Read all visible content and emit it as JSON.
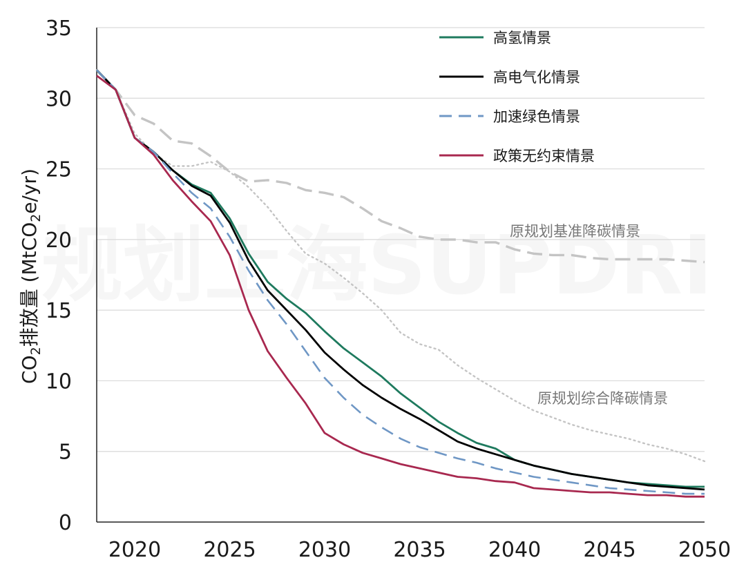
{
  "chart_data": {
    "type": "line",
    "ylabel_prefix": "CO",
    "ylabel_sub": "2",
    "ylabel_mid": "排放量 (MtCO",
    "ylabel_sub2": "2",
    "ylabel_suffix": "e/yr)",
    "xlim": [
      2018,
      2050
    ],
    "ylim": [
      0,
      35
    ],
    "x_ticks": [
      2020,
      2025,
      2030,
      2035,
      2040,
      2045,
      2050
    ],
    "y_ticks": [
      0,
      5,
      10,
      15,
      20,
      25,
      30,
      35
    ],
    "grid": "horizontal",
    "legend_position": "top-right",
    "watermark": "规划上海SUPDRI",
    "series": [
      {
        "name": "高氢情景",
        "color": "#1e7a5e",
        "dash": "solid",
        "points": [
          [
            2018,
            32.0
          ],
          [
            2019,
            30.6
          ],
          [
            2020,
            27.2
          ],
          [
            2021,
            26.2
          ],
          [
            2022,
            24.9
          ],
          [
            2023,
            23.9
          ],
          [
            2024,
            23.3
          ],
          [
            2025,
            21.5
          ],
          [
            2026,
            19.0
          ],
          [
            2027,
            17.0
          ],
          [
            2028,
            15.8
          ],
          [
            2029,
            14.8
          ],
          [
            2030,
            13.5
          ],
          [
            2031,
            12.3
          ],
          [
            2032,
            11.3
          ],
          [
            2033,
            10.3
          ],
          [
            2034,
            9.1
          ],
          [
            2035,
            8.1
          ],
          [
            2036,
            7.1
          ],
          [
            2037,
            6.3
          ],
          [
            2038,
            5.6
          ],
          [
            2039,
            5.2
          ],
          [
            2040,
            4.4
          ],
          [
            2041,
            4.0
          ],
          [
            2042,
            3.7
          ],
          [
            2043,
            3.4
          ],
          [
            2044,
            3.2
          ],
          [
            2045,
            3.0
          ],
          [
            2046,
            2.8
          ],
          [
            2047,
            2.7
          ],
          [
            2048,
            2.6
          ],
          [
            2049,
            2.5
          ],
          [
            2050,
            2.5
          ]
        ]
      },
      {
        "name": "高电气化情景",
        "color": "#000000",
        "dash": "solid",
        "points": [
          [
            2018,
            32.0
          ],
          [
            2019,
            30.6
          ],
          [
            2020,
            27.2
          ],
          [
            2021,
            26.2
          ],
          [
            2022,
            24.9
          ],
          [
            2023,
            23.8
          ],
          [
            2024,
            23.1
          ],
          [
            2025,
            21.2
          ],
          [
            2026,
            18.5
          ],
          [
            2027,
            16.4
          ],
          [
            2028,
            15.0
          ],
          [
            2029,
            13.6
          ],
          [
            2030,
            12.0
          ],
          [
            2031,
            10.8
          ],
          [
            2032,
            9.7
          ],
          [
            2033,
            8.8
          ],
          [
            2034,
            8.0
          ],
          [
            2035,
            7.3
          ],
          [
            2036,
            6.5
          ],
          [
            2037,
            5.7
          ],
          [
            2038,
            5.2
          ],
          [
            2039,
            4.8
          ],
          [
            2040,
            4.4
          ],
          [
            2041,
            4.0
          ],
          [
            2042,
            3.7
          ],
          [
            2043,
            3.4
          ],
          [
            2044,
            3.2
          ],
          [
            2045,
            3.0
          ],
          [
            2046,
            2.8
          ],
          [
            2047,
            2.6
          ],
          [
            2048,
            2.5
          ],
          [
            2049,
            2.4
          ],
          [
            2050,
            2.3
          ]
        ]
      },
      {
        "name": "加速绿色情景",
        "color": "#6f97c5",
        "dash": "dashed",
        "points": [
          [
            2018,
            32.0
          ],
          [
            2019,
            30.6
          ],
          [
            2020,
            27.2
          ],
          [
            2021,
            26.2
          ],
          [
            2022,
            24.7
          ],
          [
            2023,
            23.3
          ],
          [
            2024,
            22.2
          ],
          [
            2025,
            20.2
          ],
          [
            2026,
            17.8
          ],
          [
            2027,
            15.7
          ],
          [
            2028,
            14.0
          ],
          [
            2029,
            12.1
          ],
          [
            2030,
            10.2
          ],
          [
            2031,
            8.8
          ],
          [
            2032,
            7.6
          ],
          [
            2033,
            6.7
          ],
          [
            2034,
            5.9
          ],
          [
            2035,
            5.3
          ],
          [
            2036,
            4.9
          ],
          [
            2037,
            4.5
          ],
          [
            2038,
            4.2
          ],
          [
            2039,
            3.8
          ],
          [
            2040,
            3.5
          ],
          [
            2041,
            3.2
          ],
          [
            2042,
            3.0
          ],
          [
            2043,
            2.8
          ],
          [
            2044,
            2.6
          ],
          [
            2045,
            2.4
          ],
          [
            2046,
            2.3
          ],
          [
            2047,
            2.2
          ],
          [
            2048,
            2.1
          ],
          [
            2049,
            2.0
          ],
          [
            2050,
            2.0
          ]
        ]
      },
      {
        "name": "政策无约束情景",
        "color": "#a8284f",
        "dash": "solid",
        "points": [
          [
            2018,
            31.6
          ],
          [
            2019,
            30.6
          ],
          [
            2020,
            27.2
          ],
          [
            2021,
            26.0
          ],
          [
            2022,
            24.2
          ],
          [
            2023,
            22.7
          ],
          [
            2024,
            21.3
          ],
          [
            2025,
            18.9
          ],
          [
            2026,
            15.0
          ],
          [
            2027,
            12.1
          ],
          [
            2028,
            10.2
          ],
          [
            2029,
            8.4
          ],
          [
            2030,
            6.3
          ],
          [
            2031,
            5.5
          ],
          [
            2032,
            4.9
          ],
          [
            2033,
            4.5
          ],
          [
            2034,
            4.1
          ],
          [
            2035,
            3.8
          ],
          [
            2036,
            3.5
          ],
          [
            2037,
            3.2
          ],
          [
            2038,
            3.1
          ],
          [
            2039,
            2.9
          ],
          [
            2040,
            2.8
          ],
          [
            2041,
            2.4
          ],
          [
            2042,
            2.3
          ],
          [
            2043,
            2.2
          ],
          [
            2044,
            2.1
          ],
          [
            2045,
            2.1
          ],
          [
            2046,
            2.0
          ],
          [
            2047,
            1.9
          ],
          [
            2048,
            1.9
          ],
          [
            2049,
            1.8
          ],
          [
            2050,
            1.8
          ]
        ]
      },
      {
        "name": "原规划基准降碳情景",
        "color": "#c4c4c4",
        "dash": "longdash",
        "points": [
          [
            2018,
            32.0
          ],
          [
            2019,
            30.6
          ],
          [
            2020,
            28.8
          ],
          [
            2021,
            28.2
          ],
          [
            2022,
            27.0
          ],
          [
            2023,
            26.8
          ],
          [
            2024,
            25.9
          ],
          [
            2025,
            24.8
          ],
          [
            2026,
            24.1
          ],
          [
            2027,
            24.2
          ],
          [
            2028,
            24.0
          ],
          [
            2029,
            23.5
          ],
          [
            2030,
            23.3
          ],
          [
            2031,
            23.0
          ],
          [
            2032,
            22.2
          ],
          [
            2033,
            21.3
          ],
          [
            2034,
            20.8
          ],
          [
            2035,
            20.2
          ],
          [
            2036,
            20.0
          ],
          [
            2037,
            20.0
          ],
          [
            2038,
            19.8
          ],
          [
            2039,
            19.8
          ],
          [
            2040,
            19.3
          ],
          [
            2041,
            19.0
          ],
          [
            2042,
            18.9
          ],
          [
            2043,
            18.9
          ],
          [
            2044,
            18.7
          ],
          [
            2045,
            18.6
          ],
          [
            2046,
            18.6
          ],
          [
            2047,
            18.6
          ],
          [
            2048,
            18.6
          ],
          [
            2049,
            18.5
          ],
          [
            2050,
            18.4
          ]
        ]
      },
      {
        "name": "原规划综合降碳情景",
        "color": "#c4c4c4",
        "dash": "dotted",
        "points": [
          [
            2018,
            32.0
          ],
          [
            2019,
            30.6
          ],
          [
            2020,
            27.5
          ],
          [
            2021,
            26.1
          ],
          [
            2022,
            25.2
          ],
          [
            2023,
            25.2
          ],
          [
            2024,
            25.5
          ],
          [
            2025,
            24.8
          ],
          [
            2026,
            23.7
          ],
          [
            2027,
            22.3
          ],
          [
            2028,
            20.6
          ],
          [
            2029,
            19.0
          ],
          [
            2030,
            18.3
          ],
          [
            2031,
            17.3
          ],
          [
            2032,
            16.2
          ],
          [
            2033,
            15.0
          ],
          [
            2034,
            13.4
          ],
          [
            2035,
            12.6
          ],
          [
            2036,
            12.2
          ],
          [
            2037,
            11.1
          ],
          [
            2038,
            10.2
          ],
          [
            2039,
            9.4
          ],
          [
            2040,
            8.6
          ],
          [
            2041,
            7.9
          ],
          [
            2042,
            7.4
          ],
          [
            2043,
            6.9
          ],
          [
            2044,
            6.5
          ],
          [
            2045,
            6.2
          ],
          [
            2046,
            5.9
          ],
          [
            2047,
            5.5
          ],
          [
            2048,
            5.2
          ],
          [
            2049,
            4.8
          ],
          [
            2050,
            4.3
          ]
        ]
      }
    ],
    "legend": [
      "高氢情景",
      "高电气化情景",
      "加速绿色情景",
      "政策无约束情景"
    ],
    "annotations": [
      {
        "text": "原规划基准降碳情景",
        "series": "原规划基准降碳情景"
      },
      {
        "text": "原规划综合降碳情景",
        "series": "原规划综合降碳情景"
      }
    ]
  }
}
